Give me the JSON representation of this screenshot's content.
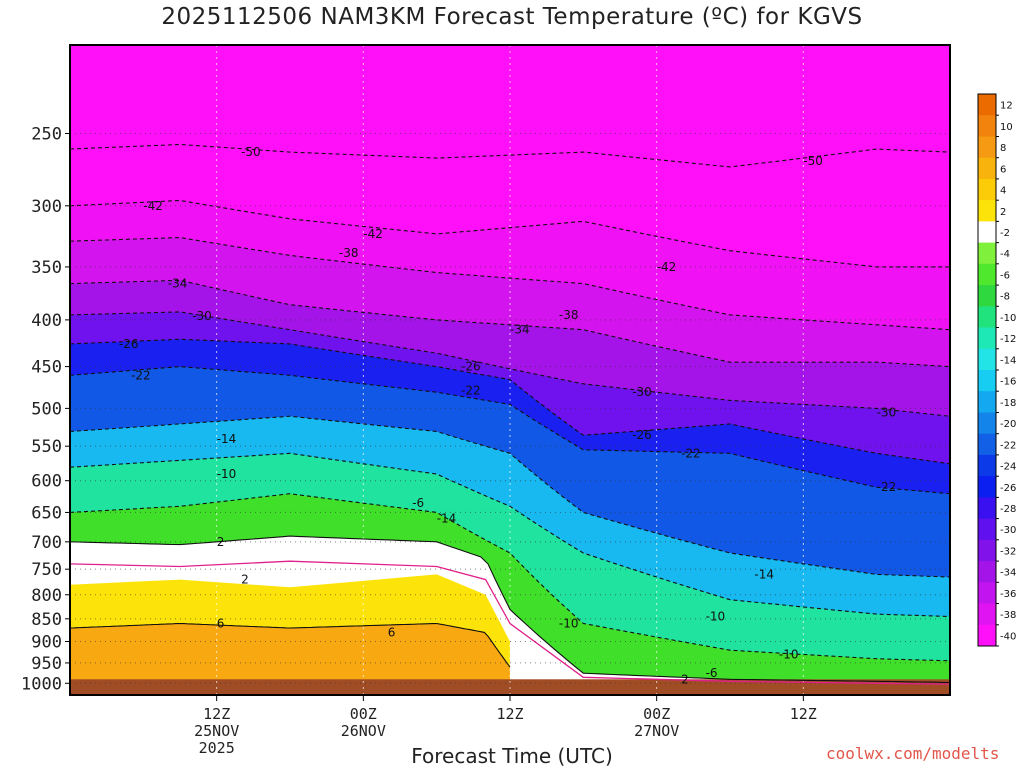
{
  "title": "2025112506 NAM3KM Forecast Temperature (ºC) for KGVS",
  "credit": "coolwx.com/modelts",
  "chart_data": {
    "type": "heatmap",
    "title": "2025112506 NAM3KM Forecast Temperature (ºC) for KGVS",
    "xlabel": "Forecast Time (UTC)",
    "ylabel": "",
    "y_axis": {
      "scale": "log",
      "ticks": [
        250,
        300,
        350,
        400,
        450,
        500,
        550,
        600,
        650,
        700,
        750,
        800,
        850,
        900,
        950,
        1000
      ],
      "range": [
        200,
        1030
      ]
    },
    "x_axis": {
      "range_hours": [
        -6,
        66
      ],
      "ticks": [
        {
          "hour": 6,
          "lines": [
            "12Z",
            "25NOV",
            "2025"
          ]
        },
        {
          "hour": 18,
          "lines": [
            "00Z",
            "26NOV"
          ]
        },
        {
          "hour": 30,
          "lines": [
            "12Z"
          ]
        },
        {
          "hour": 42,
          "lines": [
            "00Z",
            "27NOV"
          ]
        },
        {
          "hour": 54,
          "lines": [
            "12Z"
          ]
        }
      ]
    },
    "grid": true,
    "colorbar": {
      "labels": [
        "12",
        "10",
        "8",
        "6",
        "4",
        "2",
        "-2",
        "-4",
        "-6",
        "-8",
        "-10",
        "-12",
        "-14",
        "-16",
        "-18",
        "-20",
        "-22",
        "-24",
        "-26",
        "-28",
        "-30",
        "-32",
        "-34",
        "-36",
        "-38",
        "-40"
      ],
      "colors": [
        "#ec6b00",
        "#f2830c",
        "#f59a12",
        "#f8b30d",
        "#fccc08",
        "#fce40a",
        "#ffffff",
        "#7ff03c",
        "#50e82c",
        "#2ed83e",
        "#20e37d",
        "#1ee9b6",
        "#22e4e6",
        "#17cdf2",
        "#14a8f0",
        "#1384ea",
        "#1260e6",
        "#0d3ae8",
        "#0a1ff0",
        "#3a10f0",
        "#6010ee",
        "#8212ea",
        "#a414e8",
        "#c214ee",
        "#e014f2",
        "#ff10f8"
      ]
    },
    "contour_labels": [
      "-50",
      "-50",
      "-42",
      "-42",
      "-42",
      "-38",
      "-38",
      "-34",
      "-34",
      "-30",
      "-30",
      "-26",
      "-26",
      "-22",
      "-22",
      "-22",
      "-26",
      "-30",
      "-22",
      "-14",
      "-10",
      "-6",
      "-14",
      "-14",
      "-10",
      "-10",
      "-10",
      "-6",
      "2",
      "2",
      "6",
      "6",
      "2"
    ],
    "series": [
      {
        "name": "-50",
        "points": [
          [
            -6,
            260
          ],
          [
            3,
            257
          ],
          [
            12,
            262
          ],
          [
            24,
            266
          ],
          [
            36,
            262
          ],
          [
            48,
            272
          ],
          [
            60,
            260
          ],
          [
            66,
            262
          ]
        ]
      },
      {
        "name": "-42",
        "points": [
          [
            -6,
            300
          ],
          [
            3,
            296
          ],
          [
            12,
            310
          ],
          [
            24,
            322
          ],
          [
            36,
            312
          ],
          [
            48,
            336
          ],
          [
            60,
            350
          ],
          [
            66,
            350
          ]
        ]
      },
      {
        "name": "-38",
        "points": [
          [
            -6,
            328
          ],
          [
            3,
            325
          ],
          [
            12,
            340
          ],
          [
            24,
            355
          ],
          [
            36,
            365
          ],
          [
            48,
            395
          ],
          [
            60,
            405
          ],
          [
            66,
            410
          ]
        ]
      },
      {
        "name": "-34",
        "points": [
          [
            -6,
            365
          ],
          [
            3,
            362
          ],
          [
            12,
            385
          ],
          [
            24,
            400
          ],
          [
            36,
            410
          ],
          [
            48,
            445
          ],
          [
            60,
            445
          ],
          [
            66,
            450
          ]
        ]
      },
      {
        "name": "-30",
        "points": [
          [
            -6,
            395
          ],
          [
            3,
            392
          ],
          [
            12,
            410
          ],
          [
            24,
            435
          ],
          [
            36,
            470
          ],
          [
            48,
            490
          ],
          [
            60,
            500
          ],
          [
            66,
            510
          ]
        ]
      },
      {
        "name": "-26",
        "points": [
          [
            -6,
            425
          ],
          [
            3,
            420
          ],
          [
            12,
            425
          ],
          [
            24,
            450
          ],
          [
            30,
            465
          ],
          [
            36,
            535
          ],
          [
            48,
            520
          ],
          [
            60,
            560
          ],
          [
            66,
            575
          ]
        ]
      },
      {
        "name": "-22",
        "points": [
          [
            -6,
            460
          ],
          [
            3,
            450
          ],
          [
            12,
            460
          ],
          [
            24,
            480
          ],
          [
            30,
            495
          ],
          [
            36,
            555
          ],
          [
            48,
            560
          ],
          [
            60,
            610
          ],
          [
            66,
            620
          ]
        ]
      },
      {
        "name": "-14",
        "points": [
          [
            -6,
            530
          ],
          [
            3,
            520
          ],
          [
            12,
            510
          ],
          [
            24,
            530
          ],
          [
            30,
            560
          ],
          [
            36,
            650
          ],
          [
            48,
            720
          ],
          [
            60,
            760
          ],
          [
            66,
            765
          ]
        ]
      },
      {
        "name": "-10",
        "points": [
          [
            -6,
            580
          ],
          [
            3,
            570
          ],
          [
            12,
            560
          ],
          [
            24,
            590
          ],
          [
            30,
            640
          ],
          [
            36,
            720
          ],
          [
            48,
            810
          ],
          [
            60,
            840
          ],
          [
            66,
            845
          ]
        ]
      },
      {
        "name": "-6",
        "points": [
          [
            -6,
            650
          ],
          [
            3,
            640
          ],
          [
            12,
            620
          ],
          [
            24,
            650
          ],
          [
            30,
            720
          ],
          [
            36,
            860
          ],
          [
            48,
            920
          ],
          [
            60,
            940
          ],
          [
            66,
            945
          ]
        ]
      },
      {
        "name": "2",
        "points": [
          [
            -6,
            700
          ],
          [
            3,
            705
          ],
          [
            12,
            690
          ],
          [
            24,
            700
          ],
          [
            28,
            730
          ],
          [
            30,
            830
          ],
          [
            36,
            975
          ],
          [
            48,
            990
          ],
          [
            60,
            995
          ],
          [
            66,
            998
          ]
        ]
      },
      {
        "name": "6",
        "points": [
          [
            -6,
            870
          ],
          [
            3,
            860
          ],
          [
            12,
            870
          ],
          [
            24,
            860
          ],
          [
            28,
            880
          ],
          [
            30,
            960
          ]
        ]
      }
    ],
    "annotations": []
  },
  "icons": {}
}
